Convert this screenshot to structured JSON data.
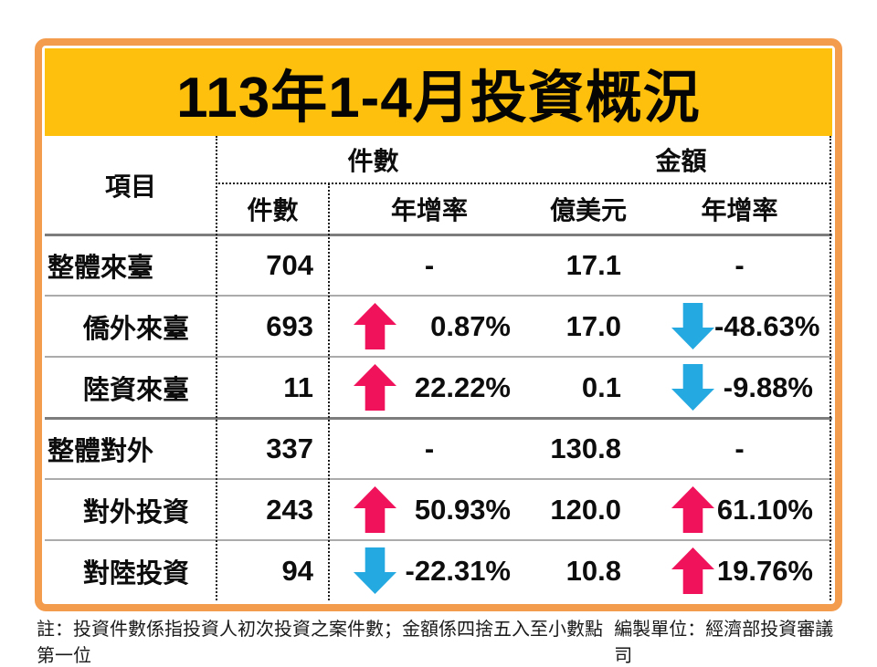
{
  "title": "113年1-4月投資概況",
  "table": {
    "header": {
      "item": "項目",
      "group_count": "件數",
      "group_amount": "金額",
      "sub_count": "件數",
      "sub_count_yoy": "年增率",
      "sub_amount_usd": "億美元",
      "sub_amount_yoy": "年增率"
    },
    "rows": [
      {
        "label": "整體來臺",
        "count": "704",
        "count_yoy": "-",
        "count_arrow": "none",
        "amount": "17.1",
        "amount_yoy": "-",
        "amount_arrow": "none"
      },
      {
        "label": "僑外來臺",
        "count": "693",
        "count_yoy": "0.87%",
        "count_arrow": "up",
        "amount": "17.0",
        "amount_yoy": "-48.63%",
        "amount_arrow": "down"
      },
      {
        "label": "陸資來臺",
        "count": "11",
        "count_yoy": "22.22%",
        "count_arrow": "up",
        "amount": "0.1",
        "amount_yoy": "-9.88%",
        "amount_arrow": "down"
      },
      {
        "label": "整體對外",
        "count": "337",
        "count_yoy": "-",
        "count_arrow": "none",
        "amount": "130.8",
        "amount_yoy": "-",
        "amount_arrow": "none"
      },
      {
        "label": "對外投資",
        "count": "243",
        "count_yoy": "50.93%",
        "count_arrow": "up",
        "amount": "120.0",
        "amount_yoy": "61.10%",
        "amount_arrow": "up"
      },
      {
        "label": "對陸投資",
        "count": "94",
        "count_yoy": "-22.31%",
        "count_arrow": "down",
        "amount": "10.8",
        "amount_yoy": "19.76%",
        "amount_arrow": "up"
      }
    ]
  },
  "footer": {
    "note": "註：投資件數係指投資人初次投資之案件數；金額係四捨五入至小數點第一位",
    "source": "編製單位：經濟部投資審議司"
  },
  "colors": {
    "frame_orange": "#F49C4E",
    "banner_yellow": "#FFC00D",
    "arrow_up_pink": "#F0135C",
    "arrow_down_blue": "#24A9E1"
  },
  "chart_data": {
    "type": "table",
    "title": "113年1-4月投資概況",
    "columns": [
      "項目",
      "件數",
      "件數年增率",
      "金額(億美元)",
      "金額年增率"
    ],
    "rows": [
      [
        "整體來臺",
        704,
        null,
        17.1,
        null
      ],
      [
        "僑外來臺",
        693,
        "+0.87%",
        17.0,
        "-48.63%"
      ],
      [
        "陸資來臺",
        11,
        "+22.22%",
        0.1,
        "-9.88%"
      ],
      [
        "整體對外",
        337,
        null,
        130.8,
        null
      ],
      [
        "對外投資",
        243,
        "+50.93%",
        120.0,
        "+61.10%"
      ],
      [
        "對陸投資",
        94,
        "-22.31%",
        10.8,
        "+19.76%"
      ]
    ],
    "notes": "上升以粉紅向上箭頭標示，下降以藍色向下箭頭標示"
  }
}
